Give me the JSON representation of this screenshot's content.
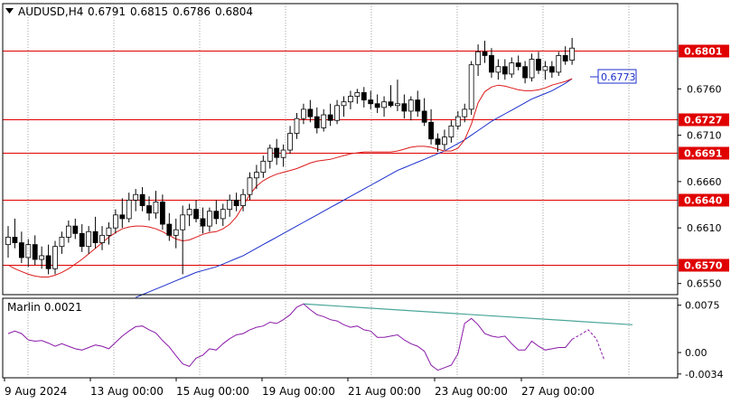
{
  "header": {
    "arrow_icon": "triangle-down-icon",
    "symbol": "AUDUSD,H4",
    "open": "0.6791",
    "high": "0.6815",
    "low": "0.6786",
    "close": "0.6804"
  },
  "colors": {
    "background": "#ffffff",
    "grid_line": "#000000",
    "level_line": "#e00000",
    "bull_candle": "#ffffff",
    "bear_candle": "#000000",
    "fast_ma": "#dd1a1a",
    "slow_ma": "#1c2fcc",
    "oscillator": "#8a1aa8",
    "trendline": "#4aa69a",
    "forecast_box": "#1c2fcc"
  },
  "chart_data": [
    {
      "type": "candlestick",
      "title": "AUDUSD,H4",
      "y_ticks": [
        "0.6550",
        "0.6610",
        "0.6660",
        "0.6710",
        "0.6760"
      ],
      "ylim": [
        0.6538,
        0.6852
      ],
      "x_ticks": [
        "9 Aug 2024",
        "13 Aug 00:00",
        "15 Aug 00:00",
        "19 Aug 00:00",
        "21 Aug 00:00",
        "23 Aug 00:00",
        "27 Aug 00:00"
      ],
      "levels": [
        {
          "value": 0.6801,
          "label": "0.6801"
        },
        {
          "value": 0.6727,
          "label": "0.6727"
        },
        {
          "value": 0.6691,
          "label": "0.6691"
        },
        {
          "value": 0.664,
          "label": "0.6640"
        },
        {
          "value": 0.657,
          "label": "0.6570"
        }
      ],
      "forecast_label": {
        "value": 0.6773,
        "label": "0.6773"
      },
      "candles": [
        [
          0.6592,
          0.6612,
          0.6578,
          0.66
        ],
        [
          0.66,
          0.662,
          0.6588,
          0.6594
        ],
        [
          0.6594,
          0.6606,
          0.6572,
          0.6578
        ],
        [
          0.6578,
          0.6598,
          0.6568,
          0.6592
        ],
        [
          0.6592,
          0.6602,
          0.657,
          0.6576
        ],
        [
          0.6576,
          0.659,
          0.6566,
          0.658
        ],
        [
          0.658,
          0.6592,
          0.656,
          0.6566
        ],
        [
          0.6566,
          0.6596,
          0.656,
          0.659
        ],
        [
          0.659,
          0.6606,
          0.6582,
          0.66
        ],
        [
          0.66,
          0.6618,
          0.6594,
          0.6612
        ],
        [
          0.6612,
          0.662,
          0.6598,
          0.6604
        ],
        [
          0.6604,
          0.6614,
          0.6584,
          0.659
        ],
        [
          0.659,
          0.6612,
          0.6582,
          0.6606
        ],
        [
          0.6606,
          0.6622,
          0.6588,
          0.6594
        ],
        [
          0.6594,
          0.6612,
          0.6586,
          0.6602
        ],
        [
          0.6602,
          0.6616,
          0.6592,
          0.661
        ],
        [
          0.661,
          0.663,
          0.6604,
          0.6624
        ],
        [
          0.6624,
          0.6642,
          0.661,
          0.662
        ],
        [
          0.662,
          0.6648,
          0.6616,
          0.664
        ],
        [
          0.664,
          0.6652,
          0.6628,
          0.6646
        ],
        [
          0.6646,
          0.6654,
          0.6628,
          0.6634
        ],
        [
          0.6634,
          0.6644,
          0.6618,
          0.6626
        ],
        [
          0.6626,
          0.665,
          0.662,
          0.6638
        ],
        [
          0.6638,
          0.6646,
          0.6608,
          0.6614
        ],
        [
          0.6614,
          0.6626,
          0.6596,
          0.6602
        ],
        [
          0.6602,
          0.662,
          0.6588,
          0.6608
        ],
        [
          0.6608,
          0.6634,
          0.656,
          0.6624
        ],
        [
          0.6624,
          0.6636,
          0.6612,
          0.663
        ],
        [
          0.663,
          0.664,
          0.6616,
          0.662
        ],
        [
          0.662,
          0.6632,
          0.6604,
          0.6612
        ],
        [
          0.6612,
          0.6632,
          0.6606,
          0.6628
        ],
        [
          0.6628,
          0.664,
          0.6614,
          0.662
        ],
        [
          0.662,
          0.6636,
          0.6612,
          0.663
        ],
        [
          0.663,
          0.6646,
          0.6622,
          0.664
        ],
        [
          0.664,
          0.6648,
          0.6628,
          0.6634
        ],
        [
          0.6634,
          0.6652,
          0.6628,
          0.6646
        ],
        [
          0.6646,
          0.667,
          0.664,
          0.6664
        ],
        [
          0.6664,
          0.6678,
          0.6652,
          0.667
        ],
        [
          0.667,
          0.6688,
          0.6664,
          0.6682
        ],
        [
          0.6682,
          0.67,
          0.6674,
          0.6696
        ],
        [
          0.6696,
          0.6706,
          0.6678,
          0.6686
        ],
        [
          0.6686,
          0.67,
          0.6676,
          0.6694
        ],
        [
          0.6694,
          0.672,
          0.669,
          0.6712
        ],
        [
          0.6712,
          0.6734,
          0.6706,
          0.6728
        ],
        [
          0.6728,
          0.6744,
          0.6722,
          0.6738
        ],
        [
          0.6738,
          0.6748,
          0.6724,
          0.673
        ],
        [
          0.673,
          0.674,
          0.6712,
          0.6718
        ],
        [
          0.6718,
          0.6738,
          0.6714,
          0.6732
        ],
        [
          0.6732,
          0.6744,
          0.672,
          0.6726
        ],
        [
          0.6726,
          0.6748,
          0.6722,
          0.6742
        ],
        [
          0.6742,
          0.6752,
          0.673,
          0.6746
        ],
        [
          0.6746,
          0.6758,
          0.6738,
          0.6752
        ],
        [
          0.6752,
          0.676,
          0.6744,
          0.6756
        ],
        [
          0.6756,
          0.6762,
          0.674,
          0.6748
        ],
        [
          0.6748,
          0.6758,
          0.6738,
          0.6744
        ],
        [
          0.6744,
          0.6754,
          0.6734,
          0.674
        ],
        [
          0.674,
          0.6752,
          0.673,
          0.6746
        ],
        [
          0.6746,
          0.6764,
          0.674,
          0.6742
        ],
        [
          0.6742,
          0.677,
          0.6736,
          0.6744
        ],
        [
          0.6744,
          0.6754,
          0.6728,
          0.6736
        ],
        [
          0.6736,
          0.6752,
          0.6726,
          0.6748
        ],
        [
          0.6748,
          0.6758,
          0.673,
          0.6736
        ],
        [
          0.6736,
          0.675,
          0.672,
          0.6724
        ],
        [
          0.6724,
          0.6738,
          0.67,
          0.6706
        ],
        [
          0.6706,
          0.6712,
          0.6692,
          0.67
        ],
        [
          0.67,
          0.6716,
          0.6694,
          0.6708
        ],
        [
          0.6708,
          0.6726,
          0.6702,
          0.672
        ],
        [
          0.672,
          0.6736,
          0.6716,
          0.673
        ],
        [
          0.673,
          0.6744,
          0.6724,
          0.6738
        ],
        [
          0.6738,
          0.679,
          0.6732,
          0.6786
        ],
        [
          0.6786,
          0.6808,
          0.6774,
          0.68
        ],
        [
          0.68,
          0.6812,
          0.6788,
          0.6796
        ],
        [
          0.6796,
          0.6804,
          0.6772,
          0.6778
        ],
        [
          0.6778,
          0.6792,
          0.677,
          0.6784
        ],
        [
          0.6784,
          0.6792,
          0.677,
          0.6776
        ],
        [
          0.6776,
          0.6794,
          0.6772,
          0.6788
        ],
        [
          0.6788,
          0.6796,
          0.678,
          0.6784
        ],
        [
          0.6784,
          0.679,
          0.6766,
          0.6772
        ],
        [
          0.6772,
          0.6798,
          0.6768,
          0.6792
        ],
        [
          0.6792,
          0.68,
          0.6776,
          0.678
        ],
        [
          0.678,
          0.679,
          0.677,
          0.6784
        ],
        [
          0.6784,
          0.679,
          0.6772,
          0.6778
        ],
        [
          0.6778,
          0.68,
          0.6774,
          0.6796
        ],
        [
          0.6796,
          0.6806,
          0.6786,
          0.679
        ],
        [
          0.6791,
          0.6815,
          0.6786,
          0.6804
        ]
      ],
      "fast_ma": [
        0.657,
        0.6566,
        0.6563,
        0.656,
        0.6558,
        0.6557,
        0.6557,
        0.6559,
        0.6562,
        0.6566,
        0.6571,
        0.6576,
        0.6582,
        0.6588,
        0.6594,
        0.66,
        0.6605,
        0.6609,
        0.6611,
        0.6612,
        0.6612,
        0.6611,
        0.6609,
        0.6606,
        0.6602,
        0.6598,
        0.6596,
        0.6597,
        0.66,
        0.6603,
        0.6605,
        0.6606,
        0.6609,
        0.6614,
        0.6622,
        0.6634,
        0.6646,
        0.6655,
        0.6661,
        0.6665,
        0.6668,
        0.667,
        0.6672,
        0.6674,
        0.6677,
        0.668,
        0.6682,
        0.6683,
        0.6684,
        0.6686,
        0.6688,
        0.669,
        0.6691,
        0.6692,
        0.6692,
        0.6692,
        0.6692,
        0.6692,
        0.6693,
        0.6695,
        0.6697,
        0.6698,
        0.6698,
        0.6697,
        0.6695,
        0.6693,
        0.6693,
        0.6696,
        0.6705,
        0.6722,
        0.6745,
        0.6757,
        0.6762,
        0.6764,
        0.6763,
        0.6761,
        0.6759,
        0.6758,
        0.6758,
        0.6759,
        0.6761,
        0.6764,
        0.6766,
        0.6768,
        0.6771
      ],
      "slow_ma": [
        null,
        null,
        null,
        null,
        null,
        null,
        null,
        null,
        null,
        null,
        null,
        null,
        null,
        null,
        null,
        null,
        null,
        null,
        null,
        0.6535,
        0.6538,
        0.6541,
        0.6544,
        0.6547,
        0.655,
        0.6553,
        0.6556,
        0.6559,
        0.6562,
        0.6564,
        0.6566,
        0.6568,
        0.6571,
        0.6574,
        0.6577,
        0.658,
        0.6584,
        0.6588,
        0.6592,
        0.6596,
        0.66,
        0.6604,
        0.6608,
        0.6612,
        0.6616,
        0.662,
        0.6624,
        0.6628,
        0.6632,
        0.6636,
        0.664,
        0.6644,
        0.6648,
        0.6652,
        0.6656,
        0.666,
        0.6664,
        0.6668,
        0.6672,
        0.6675,
        0.6678,
        0.6681,
        0.6684,
        0.6687,
        0.669,
        0.6693,
        0.6697,
        0.6701,
        0.6705,
        0.671,
        0.6715,
        0.672,
        0.6725,
        0.6729,
        0.6733,
        0.6737,
        0.6741,
        0.6745,
        0.6749,
        0.6752,
        0.6755,
        0.6758,
        0.6762,
        0.6766,
        0.6771
      ]
    },
    {
      "type": "line",
      "title": "Marlin 0.0021",
      "y_ticks": [
        "0.0075",
        "0.00",
        "-0.0034"
      ],
      "ylim": [
        -0.004,
        0.0086
      ],
      "series": [
        {
          "name": "Marlin",
          "values": [
            0.003,
            0.0034,
            0.003,
            0.002,
            0.0018,
            0.0019,
            0.0015,
            0.001,
            0.0014,
            0.001,
            0.0006,
            0.0004,
            0.0008,
            0.0012,
            0.001,
            0.0006,
            0.0016,
            0.0026,
            0.0034,
            0.0041,
            0.0042,
            0.0036,
            0.0031,
            0.0019,
            0.0009,
            -0.0005,
            -0.0018,
            -0.0022,
            -0.0009,
            -0.0004,
            0.0006,
            0.0004,
            0.0014,
            0.0022,
            0.0028,
            0.003,
            0.0036,
            0.004,
            0.0042,
            0.0048,
            0.0046,
            0.0052,
            0.006,
            0.0072,
            0.0077,
            0.0068,
            0.006,
            0.0057,
            0.0052,
            0.005,
            0.0044,
            0.004,
            0.0042,
            0.0036,
            0.0034,
            0.0024,
            0.0024,
            0.0026,
            0.0028,
            0.002,
            0.0014,
            0.001,
            0.0002,
            -0.002,
            -0.0028,
            -0.0024,
            -0.002,
            -0.0002,
            0.0046,
            0.0054,
            0.0044,
            0.003,
            0.0026,
            0.0024,
            0.0026,
            0.0014,
            0.0004,
            0.0004,
            0.0018,
            0.001,
            0.0004,
            0.0006,
            0.0008,
            0.0008,
            0.0021
          ]
        },
        {
          "name": "forecast",
          "values": [
            0.0021,
            0.0028,
            0.0036,
            0.0022,
            -0.0012
          ]
        }
      ],
      "trendline": [
        [
          44,
          0.0077
        ],
        [
          93,
          0.0044
        ]
      ]
    }
  ]
}
